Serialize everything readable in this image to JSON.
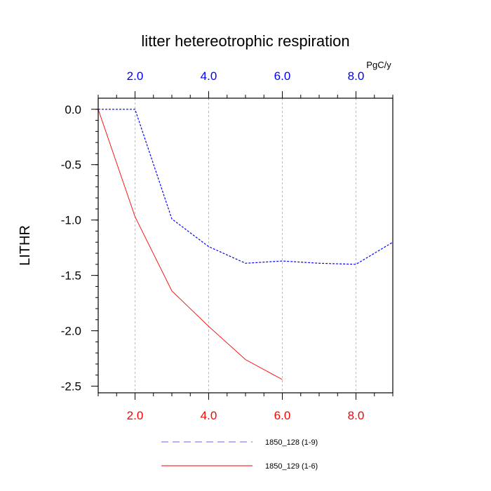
{
  "chart_data": {
    "type": "line",
    "title": "litter hetereotrophic respiration",
    "ylabel": "LITHR",
    "top_axis_unit": "PgC/y",
    "xlim": [
      1,
      9
    ],
    "ylim": [
      -2.56,
      0.1
    ],
    "grid": "vertical dashed at top/bottom tick positions",
    "top_ticks": [
      {
        "value": 2,
        "label": "2.0"
      },
      {
        "value": 4,
        "label": "4.0"
      },
      {
        "value": 6,
        "label": "6.0"
      },
      {
        "value": 8,
        "label": "8.0"
      }
    ],
    "bottom_ticks": [
      {
        "value": 2,
        "label": "2.0"
      },
      {
        "value": 4,
        "label": "4.0"
      },
      {
        "value": 6,
        "label": "6.0"
      },
      {
        "value": 8,
        "label": "8.0"
      }
    ],
    "y_ticks": [
      {
        "value": 0.0,
        "label": "0.0"
      },
      {
        "value": -0.5,
        "label": "-0.5"
      },
      {
        "value": -1.0,
        "label": "-1.0"
      },
      {
        "value": -1.5,
        "label": "-1.5"
      },
      {
        "value": -2.0,
        "label": "-2.0"
      },
      {
        "value": -2.5,
        "label": "-2.5"
      }
    ],
    "legend_position": "bottom-center",
    "series": [
      {
        "name": "1850_128 (1-9)",
        "color": "#0000ff",
        "dash": "dashed",
        "x": [
          1,
          2,
          3,
          4,
          5,
          6,
          7,
          8,
          9
        ],
        "y": [
          0.0,
          0.0,
          -0.99,
          -1.24,
          -1.39,
          -1.37,
          -1.39,
          -1.4,
          -1.2
        ]
      },
      {
        "name": "1850_129 (1-6)",
        "color": "#ff0000",
        "dash": "solid",
        "x": [
          1,
          2,
          3,
          4,
          5,
          6
        ],
        "y": [
          0.0,
          -0.97,
          -1.64,
          -1.96,
          -2.26,
          -2.44
        ]
      }
    ]
  },
  "colors": {
    "top_axis": "#0000ff",
    "bottom_axis": "#ff0000",
    "grid": "#bbbbbb"
  }
}
